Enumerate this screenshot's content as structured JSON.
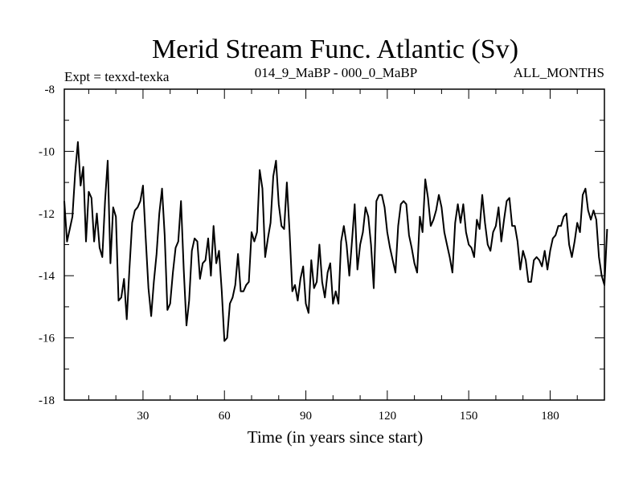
{
  "chart_data": {
    "type": "line",
    "title": "Merid Stream Func. Atlantic (Sv)",
    "subtitle_left": "Expt = texxd-texka",
    "subtitle_center": "014_9_MaBP - 000_0_MaBP",
    "subtitle_right": "ALL_MONTHS",
    "xlabel": "Time (in years since start)",
    "ylabel": "",
    "xlim": [
      1,
      200
    ],
    "ylim": [
      -18,
      -8
    ],
    "x_ticks": [
      30,
      60,
      90,
      120,
      150,
      180
    ],
    "y_ticks": [
      -8,
      -10,
      -12,
      -14,
      -16,
      -18
    ],
    "x_start": 1,
    "x_step": 1,
    "series": [
      {
        "name": "Merid Stream Func. Atlantic",
        "values": [
          -11.6,
          -12.9,
          -12.5,
          -12.1,
          -10.7,
          -9.7,
          -11.1,
          -10.5,
          -12.9,
          -11.3,
          -11.5,
          -12.9,
          -12.0,
          -13.1,
          -13.4,
          -11.6,
          -10.3,
          -13.6,
          -11.8,
          -12.1,
          -14.8,
          -14.7,
          -14.1,
          -15.4,
          -13.8,
          -12.3,
          -11.9,
          -11.8,
          -11.6,
          -11.1,
          -12.8,
          -14.4,
          -15.3,
          -14.2,
          -13.3,
          -12.0,
          -11.2,
          -12.7,
          -15.1,
          -14.9,
          -13.9,
          -13.1,
          -12.9,
          -11.6,
          -13.8,
          -15.6,
          -14.8,
          -13.2,
          -12.8,
          -12.9,
          -14.1,
          -13.6,
          -13.5,
          -12.8,
          -14.0,
          -12.4,
          -13.6,
          -13.2,
          -14.5,
          -16.1,
          -16.0,
          -14.9,
          -14.7,
          -14.3,
          -13.3,
          -14.5,
          -14.5,
          -14.3,
          -14.2,
          -12.6,
          -12.9,
          -12.6,
          -10.6,
          -11.2,
          -13.4,
          -12.8,
          -12.3,
          -10.8,
          -10.3,
          -11.7,
          -12.4,
          -12.5,
          -11.0,
          -12.6,
          -14.5,
          -14.3,
          -14.8,
          -14.1,
          -13.7,
          -14.9,
          -15.2,
          -13.5,
          -14.4,
          -14.2,
          -13.0,
          -14.2,
          -14.7,
          -13.9,
          -13.6,
          -14.9,
          -14.5,
          -14.9,
          -12.9,
          -12.4,
          -13.0,
          -14.0,
          -12.9,
          -11.7,
          -13.8,
          -13.0,
          -12.6,
          -11.8,
          -12.1,
          -13.0,
          -14.4,
          -11.6,
          -11.4,
          -11.4,
          -11.8,
          -12.6,
          -13.1,
          -13.5,
          -13.9,
          -12.4,
          -11.7,
          -11.6,
          -11.7,
          -12.7,
          -13.1,
          -13.6,
          -13.9,
          -12.1,
          -12.6,
          -10.9,
          -11.5,
          -12.4,
          -12.2,
          -11.9,
          -11.4,
          -11.8,
          -12.6,
          -13.0,
          -13.4,
          -13.9,
          -12.3,
          -11.7,
          -12.3,
          -11.7,
          -12.6,
          -13.0,
          -13.1,
          -13.4,
          -12.2,
          -12.5,
          -11.4,
          -12.3,
          -13.0,
          -13.2,
          -12.6,
          -12.4,
          -11.8,
          -12.9,
          -12.2,
          -11.6,
          -11.5,
          -12.4,
          -12.4,
          -12.9,
          -13.8,
          -13.2,
          -13.5,
          -14.2,
          -14.2,
          -13.5,
          -13.4,
          -13.5,
          -13.7,
          -13.2,
          -13.8,
          -13.2,
          -12.8,
          -12.7,
          -12.4,
          -12.4,
          -12.1,
          -12.0,
          -13.0,
          -13.4,
          -12.9,
          -12.3,
          -12.6,
          -11.4,
          -11.2,
          -11.9,
          -12.2,
          -11.9,
          -12.2,
          -13.4,
          -14.0,
          -14.3,
          -12.5
        ]
      }
    ]
  }
}
